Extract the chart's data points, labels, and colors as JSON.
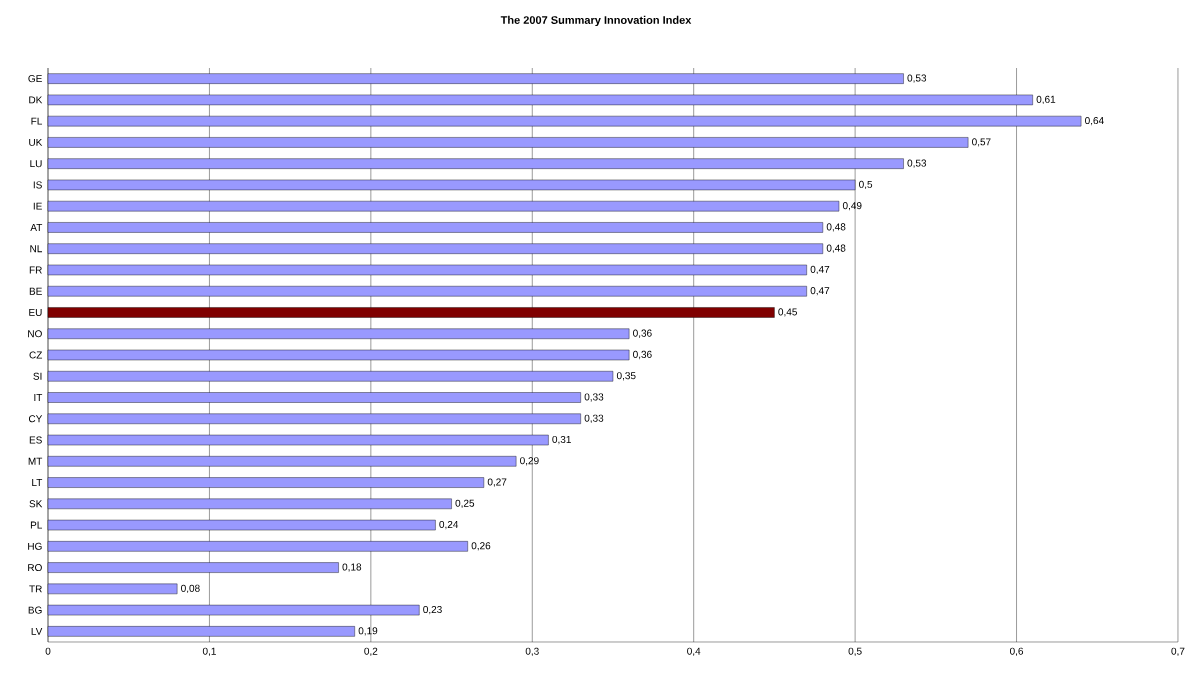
{
  "chart_data": {
    "type": "bar",
    "orientation": "horizontal",
    "title": "The 2007 Summary Innovation Index",
    "categories": [
      "GE",
      "DK",
      "FL",
      "UK",
      "LU",
      "IS",
      "IE",
      "AT",
      "NL",
      "FR",
      "BE",
      "EU",
      "NO",
      "CZ",
      "SI",
      "IT",
      "CY",
      "ES",
      "MT",
      "LT",
      "SK",
      "PL",
      "HG",
      "RO",
      "TR",
      "BG",
      "LV"
    ],
    "values": [
      0.53,
      0.61,
      0.64,
      0.57,
      0.53,
      0.5,
      0.49,
      0.48,
      0.48,
      0.47,
      0.47,
      0.45,
      0.36,
      0.36,
      0.35,
      0.33,
      0.33,
      0.31,
      0.29,
      0.27,
      0.25,
      0.24,
      0.26,
      0.18,
      0.08,
      0.23,
      0.19
    ],
    "value_labels": [
      "0,53",
      "0,61",
      "0,64",
      "0,57",
      "0,53",
      "0,5",
      "0,49",
      "0,48",
      "0,48",
      "0,47",
      "0,47",
      "0,45",
      "0,36",
      "0,36",
      "0,35",
      "0,33",
      "0,33",
      "0,31",
      "0,29",
      "0,27",
      "0,25",
      "0,24",
      "0,26",
      "0,18",
      "0,08",
      "0,23",
      "0,19"
    ],
    "colors": [
      "#9999ff",
      "#9999ff",
      "#9999ff",
      "#9999ff",
      "#9999ff",
      "#9999ff",
      "#9999ff",
      "#9999ff",
      "#9999ff",
      "#9999ff",
      "#9999ff",
      "#800000",
      "#9999ff",
      "#9999ff",
      "#9999ff",
      "#9999ff",
      "#9999ff",
      "#9999ff",
      "#9999ff",
      "#9999ff",
      "#9999ff",
      "#9999ff",
      "#9999ff",
      "#9999ff",
      "#9999ff",
      "#9999ff",
      "#9999ff"
    ],
    "xlim": [
      0,
      0.7
    ],
    "xticks": [
      {
        "value": 0,
        "label": "0"
      },
      {
        "value": 0.1,
        "label": "0,1"
      },
      {
        "value": 0.2,
        "label": "0,2"
      },
      {
        "value": 0.3,
        "label": "0,3"
      },
      {
        "value": 0.4,
        "label": "0,4"
      },
      {
        "value": 0.5,
        "label": "0,5"
      },
      {
        "value": 0.6,
        "label": "0,6"
      },
      {
        "value": 0.7,
        "label": "0,7"
      }
    ],
    "grid": "x"
  }
}
